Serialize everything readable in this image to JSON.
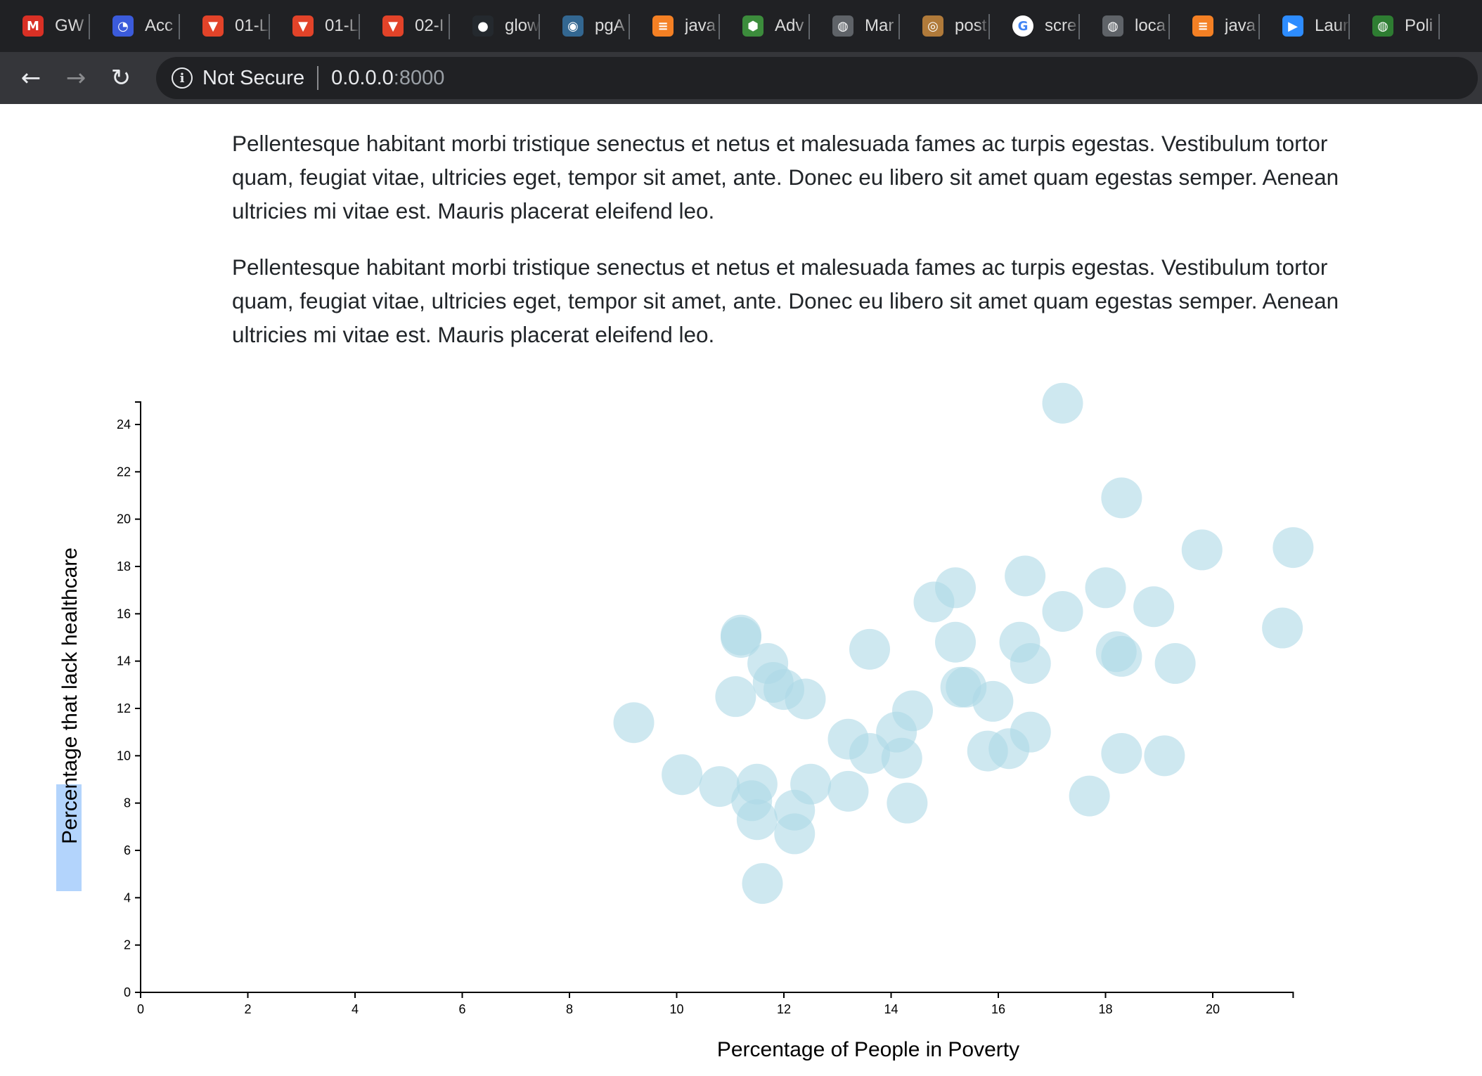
{
  "browser": {
    "tabs": [
      {
        "label": "GW",
        "icon": "gmail-icon",
        "color": "#d93025",
        "glyph": "M"
      },
      {
        "label": "Acc",
        "icon": "account-icon",
        "color": "#3b5bdb",
        "glyph": "◔"
      },
      {
        "label": "01-L",
        "icon": "gitlab-icon",
        "color": "#e24329",
        "glyph": "▼"
      },
      {
        "label": "01-L",
        "icon": "gitlab-icon",
        "color": "#e24329",
        "glyph": "▼"
      },
      {
        "label": "02-I",
        "icon": "gitlab-icon",
        "color": "#e24329",
        "glyph": "▼"
      },
      {
        "label": "glow",
        "icon": "github-icon",
        "color": "#24292e",
        "glyph": "●"
      },
      {
        "label": "pgA",
        "icon": "pgadmin-icon",
        "color": "#336791",
        "glyph": "◉"
      },
      {
        "label": "java",
        "icon": "stackoverflow-icon",
        "color": "#f48024",
        "glyph": "≡"
      },
      {
        "label": "Adv",
        "icon": "cube-icon",
        "color": "#3c8c3c",
        "glyph": "⬢"
      },
      {
        "label": "Mar",
        "icon": "globe-icon",
        "color": "#5f6368",
        "glyph": "◍"
      },
      {
        "label": "post",
        "icon": "postman-icon",
        "color": "#b07a3a",
        "glyph": "◎"
      },
      {
        "label": "scre",
        "icon": "google-icon",
        "color": "#ffffff",
        "glyph": "G"
      },
      {
        "label": "loca",
        "icon": "globe-icon",
        "color": "#5f6368",
        "glyph": "◍"
      },
      {
        "label": "java",
        "icon": "stackoverflow-icon",
        "color": "#f48024",
        "glyph": "≡"
      },
      {
        "label": "Laur",
        "icon": "zoom-icon",
        "color": "#2d8cff",
        "glyph": "▶"
      },
      {
        "label": "Poli",
        "icon": "world-icon",
        "color": "#2e7d32",
        "glyph": "◍"
      }
    ],
    "security_label": "Not Secure",
    "url_host": "0.0.0.0",
    "url_port": ":8000"
  },
  "content": {
    "paragraphs": [
      "Pellentesque habitant morbi tristique senectus et netus et malesuada fames ac turpis egestas. Vestibulum tortor quam, feugiat vitae, ultricies eget, tempor sit amet, ante. Donec eu libero sit amet quam egestas semper. Aenean ultricies mi vitae est. Mauris placerat eleifend leo.",
      "Pellentesque habitant morbi tristique senectus et netus et malesuada fames ac turpis egestas. Vestibulum tortor quam, feugiat vitae, ultricies eget, tempor sit amet, ante. Donec eu libero sit amet quam egestas semper. Aenean ultricies mi vitae est. Mauris placerat eleifend leo."
    ]
  },
  "chart_data": {
    "type": "scatter",
    "title": "",
    "xlabel": "Percentage of People in Poverty",
    "ylabel": "Percentage that lack healthcare",
    "xlim": [
      0,
      21.5
    ],
    "ylim": [
      0,
      25
    ],
    "x_ticks": [
      0,
      2,
      4,
      6,
      8,
      10,
      12,
      14,
      16,
      18,
      20
    ],
    "y_ticks": [
      0,
      2,
      4,
      6,
      8,
      10,
      12,
      14,
      16,
      18,
      20,
      22,
      24
    ],
    "grid": false,
    "marker_color": "#add8e6",
    "ylabel_highlight_color": "#b3d4fc",
    "points": [
      {
        "x": 17.2,
        "y": 24.9
      },
      {
        "x": 18.3,
        "y": 20.9
      },
      {
        "x": 19.8,
        "y": 18.7
      },
      {
        "x": 21.5,
        "y": 18.8
      },
      {
        "x": 16.5,
        "y": 17.6
      },
      {
        "x": 18.0,
        "y": 17.1
      },
      {
        "x": 15.2,
        "y": 17.1
      },
      {
        "x": 14.8,
        "y": 16.5
      },
      {
        "x": 17.2,
        "y": 16.1
      },
      {
        "x": 18.9,
        "y": 16.3
      },
      {
        "x": 21.3,
        "y": 15.4
      },
      {
        "x": 11.2,
        "y": 15.1
      },
      {
        "x": 11.2,
        "y": 15.0
      },
      {
        "x": 13.6,
        "y": 14.5
      },
      {
        "x": 15.2,
        "y": 14.8
      },
      {
        "x": 16.4,
        "y": 14.8
      },
      {
        "x": 16.6,
        "y": 13.9
      },
      {
        "x": 18.2,
        "y": 14.4
      },
      {
        "x": 18.3,
        "y": 14.2
      },
      {
        "x": 19.3,
        "y": 13.9
      },
      {
        "x": 11.7,
        "y": 13.9
      },
      {
        "x": 11.8,
        "y": 13.1
      },
      {
        "x": 12.0,
        "y": 12.8
      },
      {
        "x": 12.4,
        "y": 12.4
      },
      {
        "x": 11.1,
        "y": 12.5
      },
      {
        "x": 15.3,
        "y": 12.9
      },
      {
        "x": 15.4,
        "y": 12.9
      },
      {
        "x": 15.9,
        "y": 12.3
      },
      {
        "x": 14.4,
        "y": 11.9
      },
      {
        "x": 9.2,
        "y": 11.4
      },
      {
        "x": 14.1,
        "y": 11.0
      },
      {
        "x": 16.6,
        "y": 11.0
      },
      {
        "x": 13.2,
        "y": 10.7
      },
      {
        "x": 13.6,
        "y": 10.1
      },
      {
        "x": 14.2,
        "y": 9.9
      },
      {
        "x": 15.8,
        "y": 10.2
      },
      {
        "x": 16.2,
        "y": 10.3
      },
      {
        "x": 18.3,
        "y": 10.1
      },
      {
        "x": 19.1,
        "y": 10.0
      },
      {
        "x": 10.1,
        "y": 9.2
      },
      {
        "x": 10.8,
        "y": 8.7
      },
      {
        "x": 11.5,
        "y": 8.8
      },
      {
        "x": 11.4,
        "y": 8.1
      },
      {
        "x": 12.5,
        "y": 8.8
      },
      {
        "x": 13.2,
        "y": 8.5
      },
      {
        "x": 14.3,
        "y": 8.0
      },
      {
        "x": 17.7,
        "y": 8.3
      },
      {
        "x": 12.2,
        "y": 7.7
      },
      {
        "x": 11.5,
        "y": 7.3
      },
      {
        "x": 12.2,
        "y": 6.7
      },
      {
        "x": 11.6,
        "y": 4.6
      }
    ]
  }
}
